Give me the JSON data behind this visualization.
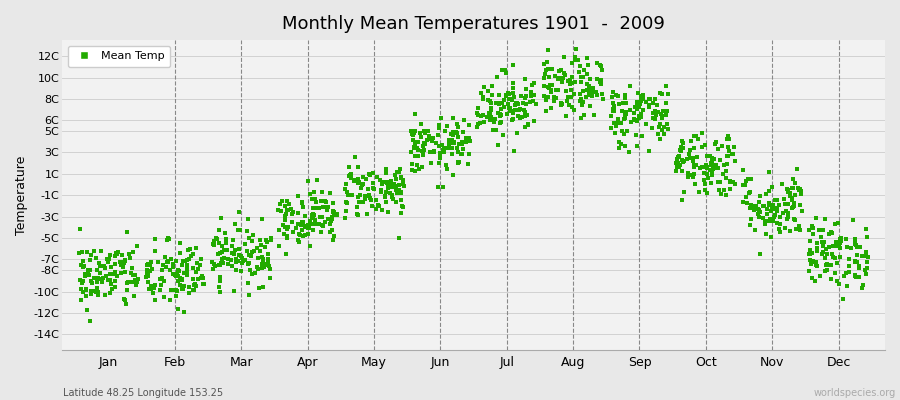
{
  "title": "Monthly Mean Temperatures 1901  -  2009",
  "ylabel": "Temperature",
  "bottom_left_label": "Latitude 48.25 Longitude 153.25",
  "bottom_right_label": "worldspecies.org",
  "dot_color": "#22aa00",
  "background_color": "#e8e8e8",
  "plot_bg_color": "#f2f2f2",
  "months": [
    "Jan",
    "Feb",
    "Mar",
    "Apr",
    "May",
    "Jun",
    "Jul",
    "Aug",
    "Sep",
    "Oct",
    "Nov",
    "Dec"
  ],
  "month_means": [
    -8.5,
    -8.5,
    -6.5,
    -3.0,
    -0.5,
    3.5,
    7.5,
    9.0,
    6.5,
    2.0,
    -2.0,
    -6.5
  ],
  "month_stds": [
    1.6,
    1.6,
    1.4,
    1.3,
    1.3,
    1.3,
    1.5,
    1.4,
    1.5,
    1.6,
    1.6,
    1.6
  ],
  "n_years": 109,
  "ylim": [
    -15.5,
    13.5
  ],
  "ytick_positions": [
    -14,
    -12,
    -10,
    -8,
    -7,
    -5,
    -3,
    -1,
    1,
    3,
    5,
    6,
    8,
    10,
    12
  ],
  "ytick_labels": [
    "-14C",
    "-12C",
    "-10C",
    "-8C",
    "-7C",
    "-5C",
    "-3C",
    "-1C",
    "1C",
    "3C",
    "5C",
    "6C",
    "8C",
    "10C",
    "12C"
  ],
  "marker_size": 5,
  "seed": 42,
  "vlines": [
    1.5,
    2.5,
    3.5,
    4.5,
    5.5,
    6.5,
    7.5,
    8.5,
    9.5,
    10.5,
    11.5
  ],
  "hgrid_positions": [
    -14,
    -12,
    -10,
    -8,
    -7,
    -5,
    -3,
    -1,
    1,
    3,
    5,
    6,
    8,
    10,
    12
  ]
}
